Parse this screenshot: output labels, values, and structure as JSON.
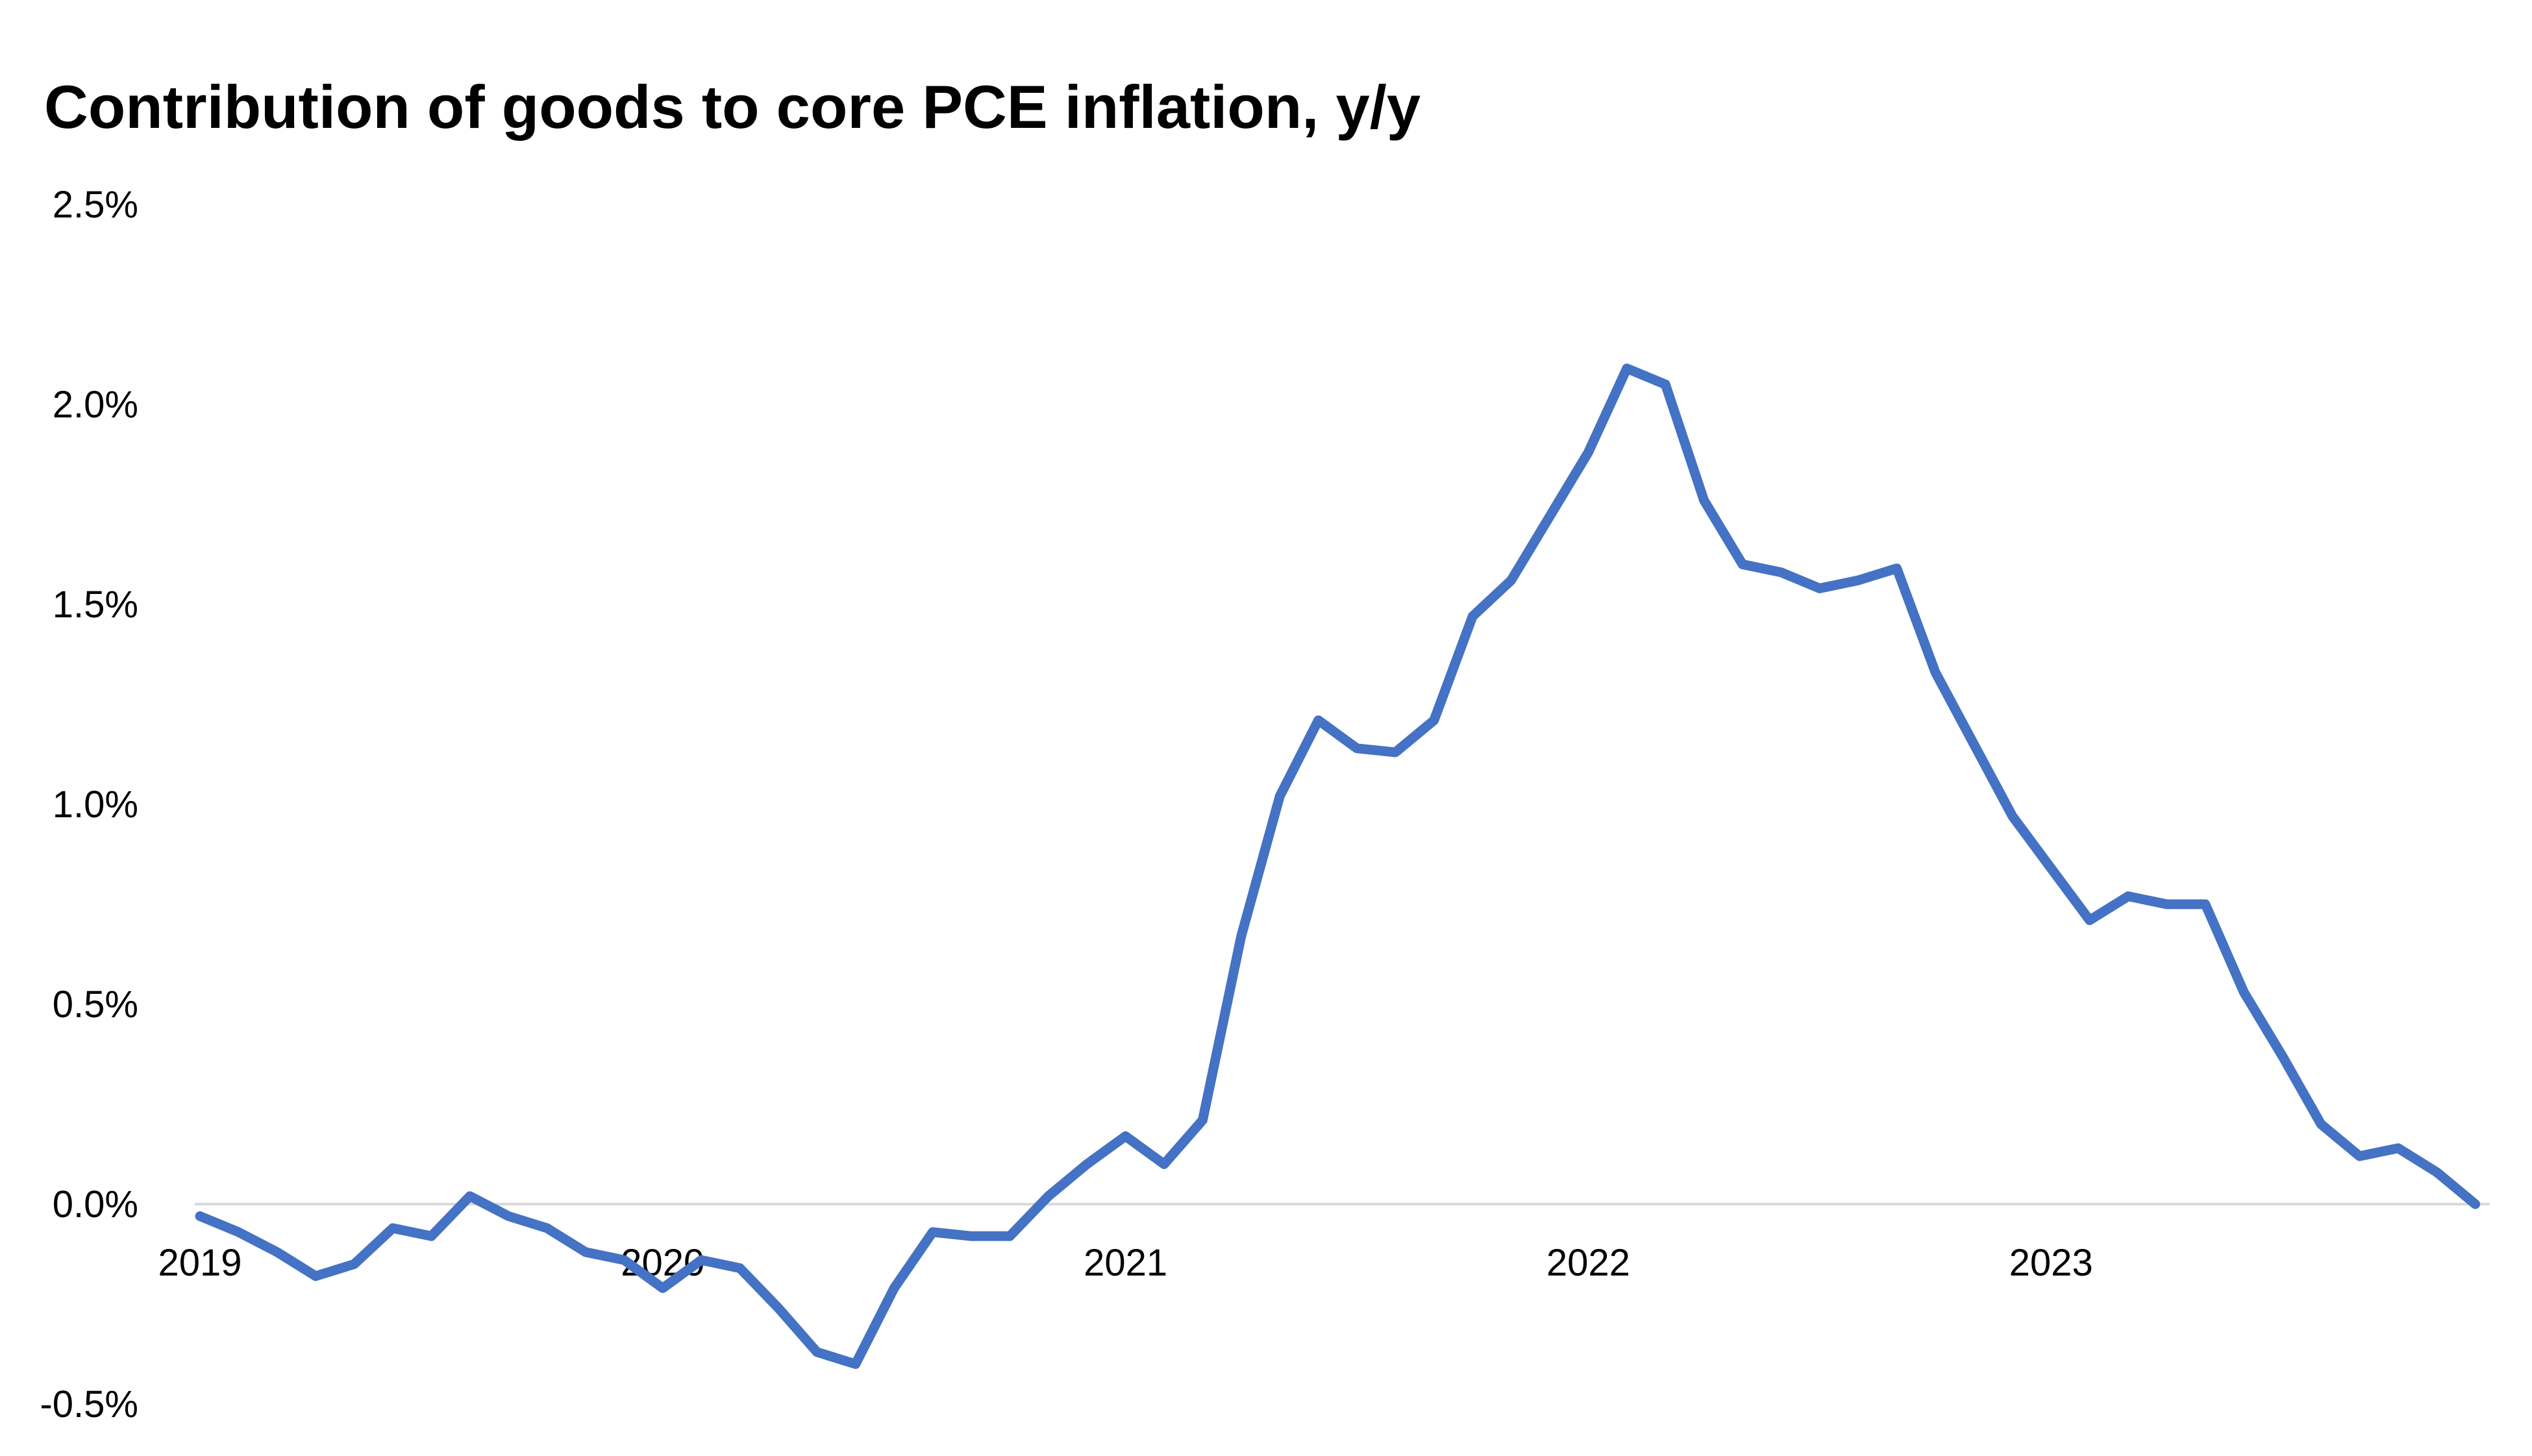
{
  "chart_data": {
    "type": "line",
    "title": "Contribution of goods to core PCE inflation, y/y",
    "xlabel": "",
    "ylabel": "",
    "ylim": [
      -0.5,
      2.5
    ],
    "yticks": [
      "2.5%",
      "2.0%",
      "1.5%",
      "1.0%",
      "0.5%",
      "0.0%",
      "-0.5%"
    ],
    "ytick_values": [
      2.5,
      2.0,
      1.5,
      1.0,
      0.5,
      0.0,
      -0.5
    ],
    "xticks": [
      "2019",
      "2020",
      "2021",
      "2022",
      "2023"
    ],
    "grid": false,
    "legend": "none",
    "line_color": "#4472C4",
    "zero_line_color": "#d9d9d9",
    "series": [
      {
        "values": [
          -0.03,
          -0.07,
          -0.12,
          -0.18,
          -0.15,
          -0.06,
          -0.08,
          0.02,
          -0.03,
          -0.06,
          -0.12,
          -0.14,
          -0.21,
          -0.14,
          -0.16,
          -0.26,
          -0.37,
          -0.4,
          -0.21,
          -0.07,
          -0.08,
          -0.08,
          0.02,
          0.1,
          0.17,
          0.1,
          0.21,
          0.67,
          1.02,
          1.21,
          1.14,
          1.13,
          1.21,
          1.47,
          1.56,
          1.72,
          1.88,
          2.09,
          2.05,
          1.76,
          1.6,
          1.58,
          1.54,
          1.56,
          1.59,
          1.33,
          1.15,
          0.97,
          0.84,
          0.71,
          0.77,
          0.75,
          0.75,
          0.53,
          0.37,
          0.2,
          0.12,
          0.14,
          0.08,
          0.0
        ]
      }
    ]
  }
}
